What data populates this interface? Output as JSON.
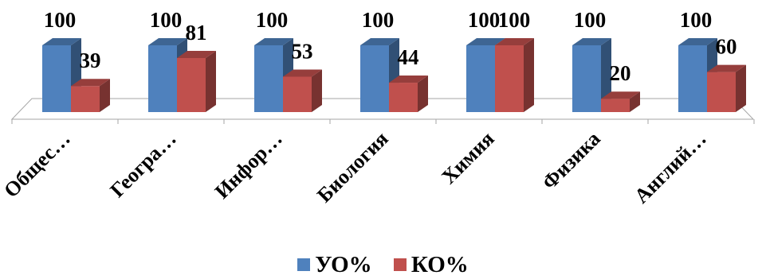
{
  "chart_data": {
    "type": "bar",
    "categories": [
      "Общес…",
      "Геогра…",
      "Инфор…",
      "Биология",
      "Химия",
      "Физика",
      "Англий…"
    ],
    "series": [
      {
        "name": "УО%",
        "values": [
          100,
          100,
          100,
          100,
          100,
          100,
          100
        ],
        "color": "#4F81BD"
      },
      {
        "name": "КО%",
        "values": [
          39,
          81,
          53,
          44,
          100,
          20,
          60
        ],
        "color": "#C0504D"
      }
    ],
    "ylim": [
      0,
      100
    ],
    "grid": false,
    "legend_position": "bottom",
    "data_labels": true
  }
}
